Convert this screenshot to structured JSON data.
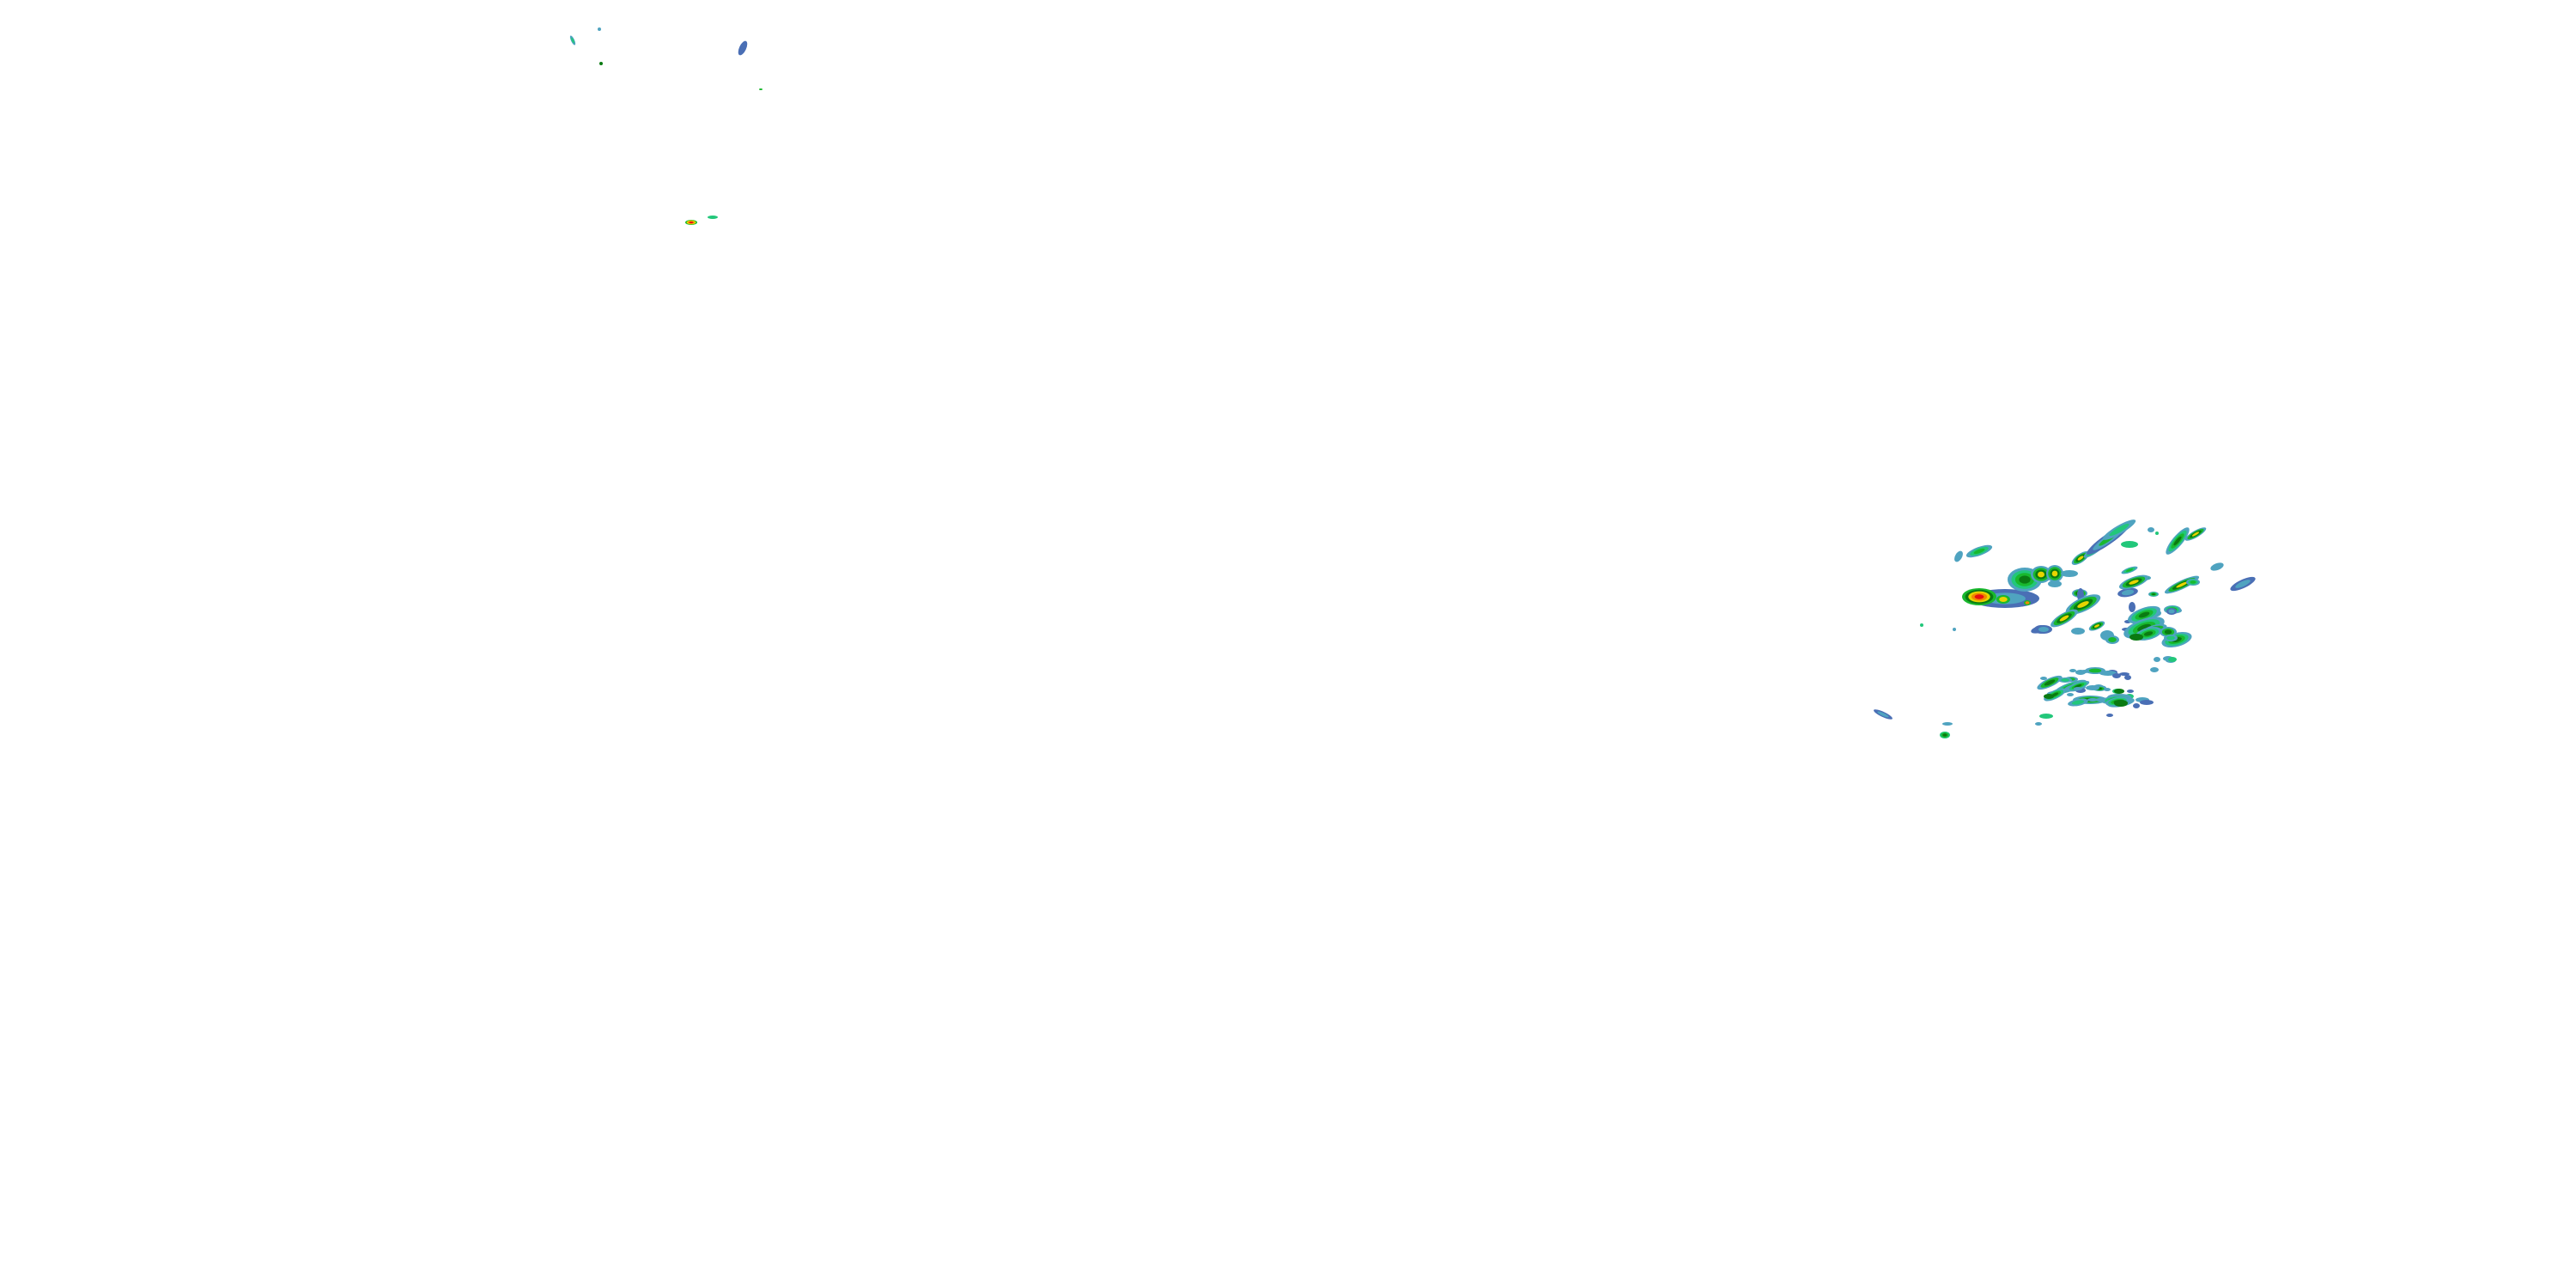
{
  "map": {
    "layer": "radar-reflectivity",
    "background": "#ffffff",
    "palette": {
      "light": "#4a6fb5",
      "light_teal": "#4fa3c0",
      "teal_green": "#22c77a",
      "green": "#19b82e",
      "dark_green": "#0a7a12",
      "yellow": "#e8d400",
      "orange": "#f08a00",
      "red": "#e81010"
    }
  }
}
